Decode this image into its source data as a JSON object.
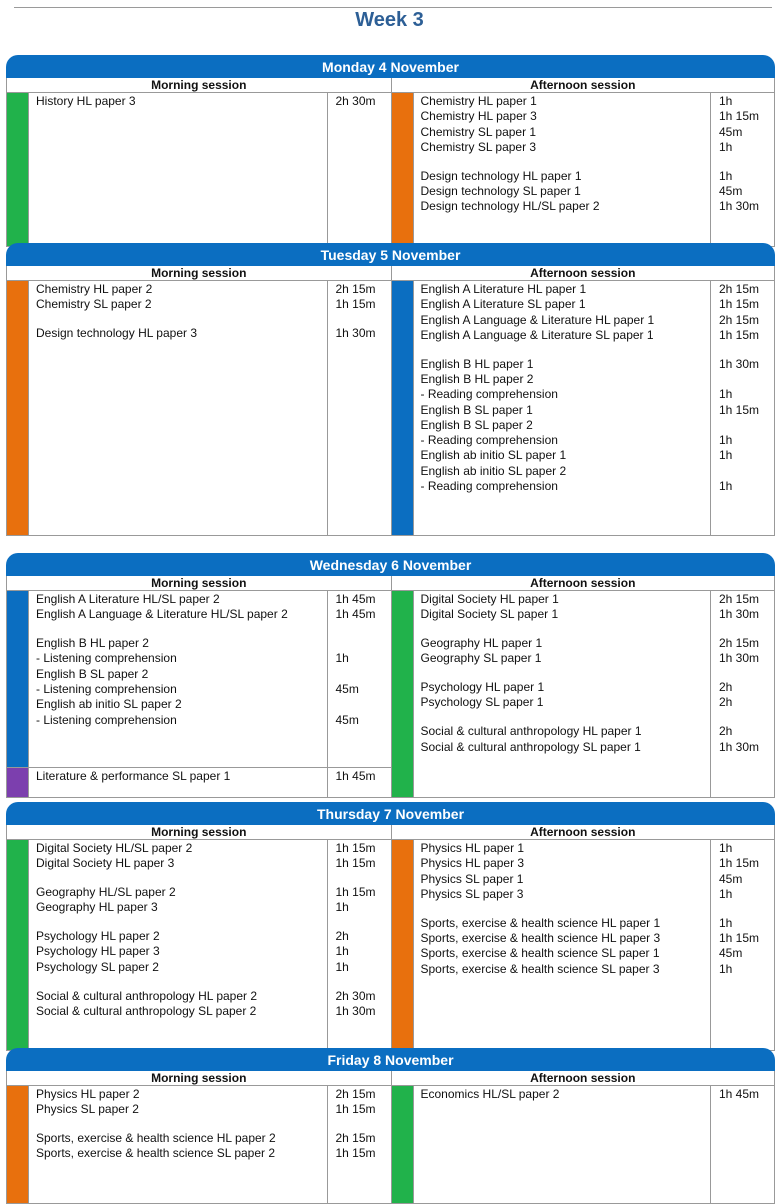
{
  "title": "Week 3",
  "colors": {
    "header_blue": "#0b6ec1",
    "green": "#21b24b",
    "orange": "#e8700d",
    "blue": "#0b6ec1",
    "purple": "#7c3fae"
  },
  "days": [
    {
      "name": "Monday 4 November",
      "morning_label": "Morning session",
      "afternoon_label": "Afternoon session",
      "morning": [
        {
          "color": "green",
          "lines": [
            [
              "History HL paper 3",
              "2h 30m"
            ]
          ]
        }
      ],
      "afternoon": [
        {
          "color": "orange",
          "lines": [
            [
              "Chemistry HL paper 1",
              "1h"
            ],
            [
              "Chemistry HL paper 3",
              "1h 15m"
            ],
            [
              "Chemistry SL paper 1",
              "45m"
            ],
            [
              "Chemistry SL paper 3",
              "1h"
            ],
            [
              "",
              ""
            ],
            [
              "Design technology HL paper 1",
              "1h"
            ],
            [
              "Design technology SL paper 1",
              "45m"
            ],
            [
              "Design technology HL/SL paper 2",
              "1h 30m"
            ]
          ]
        }
      ]
    },
    {
      "name": "Tuesday 5 November",
      "morning_label": "Morning session",
      "afternoon_label": "Afternoon session",
      "morning": [
        {
          "color": "orange",
          "lines": [
            [
              "Chemistry HL paper 2",
              "2h 15m"
            ],
            [
              "Chemistry SL paper 2",
              "1h 15m"
            ],
            [
              "",
              ""
            ],
            [
              "Design technology HL paper 3",
              "1h 30m"
            ]
          ]
        }
      ],
      "afternoon": [
        {
          "color": "blue",
          "lines": [
            [
              "English A Literature HL paper 1",
              "2h 15m"
            ],
            [
              "English A Literature SL paper 1",
              "1h 15m"
            ],
            [
              "English A Language & Literature HL paper 1",
              "2h 15m"
            ],
            [
              "English A Language & Literature SL paper 1",
              "1h 15m"
            ],
            [
              "",
              ""
            ],
            [
              "English B HL paper 1",
              "1h 30m"
            ],
            [
              "English B HL paper 2",
              ""
            ],
            [
              "- Reading comprehension",
              "1h"
            ],
            [
              "English B SL paper 1",
              "1h 15m"
            ],
            [
              "English B SL paper 2",
              ""
            ],
            [
              "- Reading comprehension",
              "1h"
            ],
            [
              "English ab initio SL paper 1",
              "1h"
            ],
            [
              "English ab initio SL paper 2",
              ""
            ],
            [
              "- Reading comprehension",
              "1h"
            ]
          ]
        }
      ]
    },
    {
      "name": "Wednesday 6 November",
      "morning_label": "Morning session",
      "afternoon_label": "Afternoon session",
      "morning": [
        {
          "color": "blue",
          "lines": [
            [
              "English A Literature HL/SL paper 2",
              "1h 45m"
            ],
            [
              "English A Language & Literature HL/SL paper 2",
              "1h 45m"
            ],
            [
              "",
              ""
            ],
            [
              "English B HL paper 2",
              ""
            ],
            [
              "- Listening comprehension",
              "1h"
            ],
            [
              "English B SL paper 2",
              ""
            ],
            [
              "- Listening comprehension",
              "45m"
            ],
            [
              "English ab initio SL paper 2",
              ""
            ],
            [
              "- Listening comprehension",
              "45m"
            ]
          ]
        },
        {
          "color": "purple",
          "lines": [
            [
              "Literature & performance SL paper 1",
              "1h 45m"
            ]
          ]
        }
      ],
      "afternoon": [
        {
          "color": "green",
          "lines": [
            [
              "Digital Society HL paper 1",
              "2h 15m"
            ],
            [
              "Digital Society SL paper 1",
              "1h 30m"
            ],
            [
              "",
              ""
            ],
            [
              "Geography HL paper 1",
              "2h 15m"
            ],
            [
              "Geography SL paper 1",
              "1h 30m"
            ],
            [
              "",
              ""
            ],
            [
              "Psychology HL paper 1",
              "2h"
            ],
            [
              "Psychology SL paper 1",
              "2h"
            ],
            [
              "",
              ""
            ],
            [
              "Social & cultural anthropology HL paper 1",
              "2h"
            ],
            [
              "Social & cultural anthropology SL paper 1",
              "1h 30m"
            ]
          ]
        }
      ]
    },
    {
      "name": "Thursday 7 November",
      "morning_label": "Morning session",
      "afternoon_label": "Afternoon session",
      "morning": [
        {
          "color": "green",
          "lines": [
            [
              "Digital Society HL/SL paper 2",
              "1h 15m"
            ],
            [
              "Digital Society HL paper 3",
              "1h 15m"
            ],
            [
              "",
              ""
            ],
            [
              "Geography HL/SL paper 2",
              "1h 15m"
            ],
            [
              "Geography HL paper 3",
              "1h"
            ],
            [
              "",
              ""
            ],
            [
              "Psychology HL paper 2",
              "2h"
            ],
            [
              "Psychology HL paper 3",
              "1h"
            ],
            [
              "Psychology SL paper 2",
              "1h"
            ],
            [
              "",
              ""
            ],
            [
              "Social & cultural anthropology HL paper 2",
              "2h 30m"
            ],
            [
              "Social & cultural anthropology SL paper 2",
              "1h 30m"
            ]
          ]
        }
      ],
      "afternoon": [
        {
          "color": "orange",
          "lines": [
            [
              "Physics HL paper 1",
              "1h"
            ],
            [
              "Physics HL paper 3",
              "1h 15m"
            ],
            [
              "Physics SL paper 1",
              "45m"
            ],
            [
              "Physics SL paper 3",
              "1h"
            ],
            [
              "",
              ""
            ],
            [
              "Sports, exercise & health science HL paper 1",
              "1h"
            ],
            [
              "Sports, exercise & health science HL paper 3",
              "1h 15m"
            ],
            [
              "Sports, exercise & health science SL paper 1",
              "45m"
            ],
            [
              "Sports, exercise & health science SL paper 3",
              "1h"
            ]
          ]
        }
      ]
    },
    {
      "name": "Friday 8 November",
      "morning_label": "Morning session",
      "afternoon_label": "Afternoon session",
      "morning": [
        {
          "color": "orange",
          "lines": [
            [
              "Physics HL paper 2",
              "2h 15m"
            ],
            [
              "Physics SL paper 2",
              "1h 15m"
            ],
            [
              "",
              ""
            ],
            [
              "Sports, exercise & health science HL paper 2",
              "2h 15m"
            ],
            [
              "Sports, exercise & health science SL paper 2",
              "1h 15m"
            ]
          ]
        }
      ],
      "afternoon": [
        {
          "color": "green",
          "lines": [
            [
              "Economics HL/SL paper 2",
              "1h 45m"
            ]
          ]
        }
      ]
    }
  ]
}
